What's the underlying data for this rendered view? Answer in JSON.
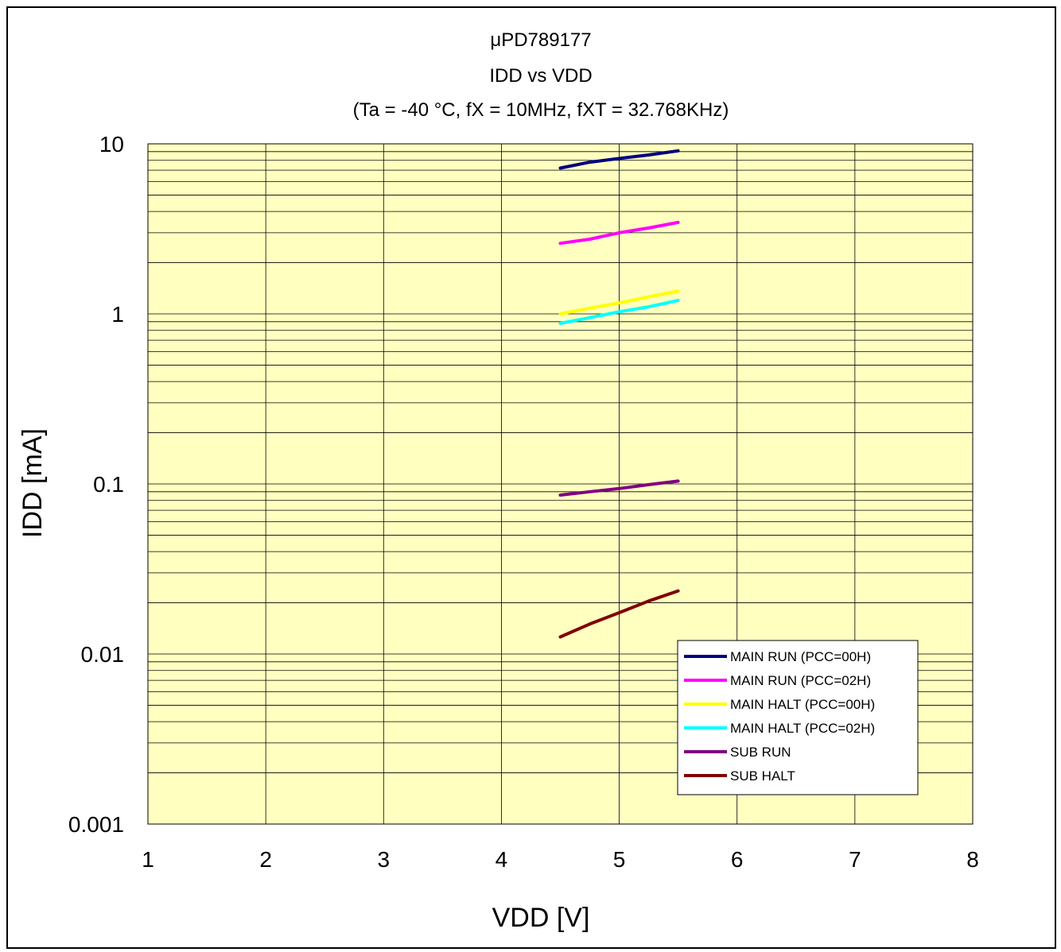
{
  "chart_data": {
    "type": "line",
    "title": [
      "μPD789177",
      "IDD vs VDD",
      "(Ta = -40 °C, fX = 10MHz, fXT = 32.768KHz)"
    ],
    "xlabel": "VDD [V]",
    "ylabel": "IDD [mA]",
    "xlim": [
      1,
      8
    ],
    "ylim": [
      0.001,
      10
    ],
    "yscale": "log",
    "x_ticks": [
      "1",
      "2",
      "3",
      "4",
      "5",
      "6",
      "7",
      "8"
    ],
    "y_ticks": [
      "10",
      "1",
      "0.1",
      "0.01",
      "0.001"
    ],
    "grid": true,
    "plot_background": "#ffffc0",
    "legend_position": "bottom-right",
    "x": [
      4.5,
      4.75,
      5.0,
      5.25,
      5.5
    ],
    "series": [
      {
        "name": "MAIN RUN (PCC=00H)",
        "color": "#000080",
        "values": [
          7.2,
          7.8,
          8.2,
          8.6,
          9.1
        ]
      },
      {
        "name": "MAIN RUN (PCC=02H)",
        "color": "#ff00ff",
        "values": [
          2.6,
          2.75,
          3.0,
          3.2,
          3.45
        ]
      },
      {
        "name": "MAIN HALT (PCC=00H)",
        "color": "#ffff00",
        "values": [
          1.0,
          1.08,
          1.16,
          1.26,
          1.36
        ]
      },
      {
        "name": "MAIN HALT (PCC=02H)",
        "color": "#00ffff",
        "values": [
          0.88,
          0.95,
          1.03,
          1.1,
          1.2
        ]
      },
      {
        "name": "SUB RUN",
        "color": "#800080",
        "values": [
          0.086,
          0.09,
          0.094,
          0.099,
          0.104
        ]
      },
      {
        "name": "SUB HALT",
        "color": "#800000",
        "values": [
          0.0126,
          0.015,
          0.0175,
          0.0205,
          0.0235
        ]
      }
    ]
  }
}
